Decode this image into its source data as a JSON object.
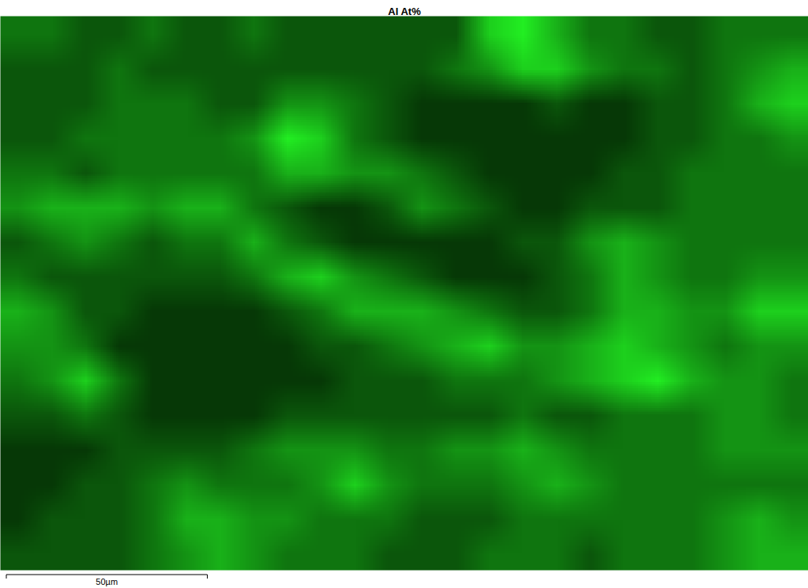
{
  "chart_data": {
    "type": "heatmap",
    "title": "Al At%",
    "field_width": 201,
    "field_height": 138,
    "scale_bar": {
      "length": 50,
      "label": "50µm"
    },
    "colors": [
      "#063806",
      "#22ee22"
    ],
    "tick_labels": false,
    "cells": [
      [
        4,
        4,
        3,
        3,
        4,
        3,
        3,
        4,
        3,
        3,
        3,
        3,
        3,
        3,
        7,
        8,
        6,
        4,
        4,
        3,
        3,
        4,
        4,
        4
      ],
      [
        3,
        3,
        3,
        4,
        3,
        3,
        3,
        3,
        3,
        3,
        3,
        3,
        3,
        4,
        5,
        7,
        7,
        5,
        4,
        4,
        3,
        4,
        5,
        6
      ],
      [
        3,
        3,
        3,
        4,
        4,
        4,
        3,
        3,
        5,
        5,
        4,
        3,
        2,
        2,
        2,
        2,
        3,
        2,
        2,
        3,
        3,
        4,
        6,
        7
      ],
      [
        3,
        3,
        4,
        4,
        4,
        4,
        4,
        5,
        8,
        7,
        4,
        3,
        2,
        2,
        2,
        2,
        2,
        2,
        2,
        3,
        3,
        4,
        4,
        5
      ],
      [
        4,
        4,
        3,
        4,
        4,
        4,
        4,
        4,
        6,
        6,
        5,
        5,
        4,
        3,
        2,
        2,
        2,
        2,
        3,
        3,
        4,
        4,
        4,
        4
      ],
      [
        5,
        6,
        6,
        6,
        5,
        6,
        6,
        4,
        3,
        2,
        2,
        3,
        5,
        4,
        3,
        2,
        2,
        3,
        3,
        3,
        4,
        4,
        4,
        4
      ],
      [
        3,
        4,
        5,
        4,
        3,
        4,
        4,
        6,
        4,
        3,
        2,
        2,
        2,
        2,
        2,
        3,
        3,
        5,
        6,
        5,
        4,
        4,
        4,
        4
      ],
      [
        4,
        3,
        3,
        3,
        3,
        3,
        3,
        4,
        6,
        7,
        5,
        4,
        3,
        2,
        2,
        2,
        3,
        4,
        6,
        5,
        4,
        4,
        5,
        5
      ],
      [
        6,
        5,
        3,
        3,
        2,
        2,
        2,
        2,
        3,
        4,
        6,
        6,
        6,
        5,
        4,
        3,
        3,
        4,
        6,
        6,
        5,
        5,
        7,
        7
      ],
      [
        5,
        5,
        4,
        2,
        2,
        2,
        2,
        2,
        2,
        3,
        3,
        4,
        5,
        6,
        7,
        5,
        5,
        6,
        7,
        6,
        5,
        4,
        5,
        5
      ],
      [
        4,
        5,
        7,
        4,
        2,
        2,
        2,
        2,
        2,
        2,
        3,
        3,
        3,
        4,
        4,
        4,
        5,
        6,
        7,
        8,
        6,
        5,
        5,
        4
      ],
      [
        3,
        3,
        4,
        3,
        2,
        2,
        2,
        2,
        3,
        3,
        3,
        3,
        3,
        3,
        3,
        4,
        3,
        3,
        4,
        4,
        4,
        5,
        5,
        4
      ],
      [
        2,
        2,
        2,
        3,
        3,
        3,
        3,
        4,
        5,
        5,
        5,
        4,
        4,
        5,
        5,
        6,
        5,
        4,
        4,
        4,
        4,
        5,
        5,
        5
      ],
      [
        2,
        2,
        3,
        3,
        4,
        5,
        4,
        4,
        4,
        5,
        7,
        5,
        4,
        4,
        4,
        5,
        6,
        5,
        4,
        4,
        4,
        4,
        4,
        4
      ],
      [
        2,
        3,
        3,
        3,
        4,
        6,
        6,
        5,
        5,
        4,
        4,
        4,
        3,
        3,
        3,
        4,
        4,
        4,
        4,
        4,
        4,
        5,
        6,
        5
      ],
      [
        3,
        3,
        3,
        3,
        4,
        5,
        6,
        5,
        4,
        4,
        4,
        3,
        3,
        3,
        4,
        4,
        4,
        3,
        4,
        4,
        4,
        5,
        6,
        6
      ]
    ]
  }
}
